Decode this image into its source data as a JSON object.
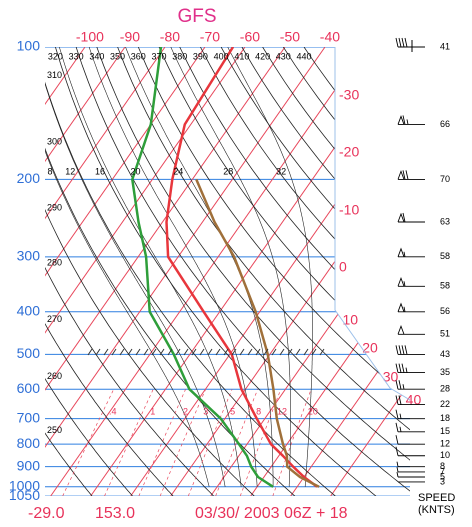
{
  "chart_data": {
    "type": "skewt",
    "title": "GFS",
    "yscale": "log",
    "ylim": [
      1050,
      100
    ],
    "yticks": [
      100,
      200,
      300,
      400,
      500,
      600,
      700,
      800,
      900,
      1000,
      1050
    ],
    "xlim": [
      -110,
      -37.5
    ],
    "xticks": [
      -100,
      -90,
      -80,
      -70,
      -60,
      -50,
      -40,
      -30,
      -20,
      -10,
      0,
      10,
      20,
      30,
      40
    ],
    "theta_ticks": [
      250,
      260,
      270,
      280,
      290,
      300,
      310,
      320,
      330,
      340,
      350,
      360,
      370,
      380,
      390,
      400,
      410,
      420,
      430,
      440
    ],
    "moist_adiabat_ticks": [
      8,
      12,
      16,
      20,
      24,
      28,
      32
    ],
    "mixing_ratio_ticks": [
      {
        "value": 0.4,
        "label": ".4"
      },
      1,
      2,
      3,
      5,
      8,
      12,
      20
    ],
    "grid_colors": {
      "isotherm": "#e8485c",
      "isobar": "#2f7fe0",
      "adiabat": "#222222",
      "mixing_ratio": "#e8485c"
    },
    "pressure_levels": [
      1000,
      950,
      900,
      850,
      800,
      700,
      600,
      500,
      400,
      300,
      250,
      200,
      150,
      100
    ],
    "series": [
      {
        "name": "Temperature",
        "color": "#e8363c",
        "values": [
          35,
          30,
          25.5,
          21,
          16,
          8,
          -1,
          -9.5,
          -24,
          -42.5,
          -49,
          -55,
          -61.5,
          -63
        ]
      },
      {
        "name": "Dewpoint",
        "color": "#2e9e3a",
        "values": [
          24,
          18.5,
          15,
          12,
          8,
          -1,
          -14,
          -24,
          -37.5,
          -48,
          -56,
          -65,
          -70,
          -81
        ]
      },
      {
        "name": "Parcel",
        "color": "#a0703a",
        "values": [
          35.5,
          29,
          24,
          22,
          19,
          13,
          7,
          -0.5,
          -11,
          -26,
          -37,
          -49,
          null,
          null
        ]
      }
    ],
    "wind_pressures": [
      100,
      150,
      200,
      250,
      300,
      350,
      400,
      450,
      500,
      550,
      600,
      650,
      700,
      750,
      800,
      850,
      900,
      925,
      950,
      975
    ],
    "wind_speeds": [
      41,
      66,
      70,
      63,
      58,
      58,
      56,
      51,
      43,
      35,
      28,
      22,
      18,
      15,
      12,
      10,
      8,
      7,
      5,
      3
    ],
    "wind_axis_label": [
      "SPEED",
      "(KNTS)"
    ],
    "annotations": [
      "-29.0",
      "153.0",
      "03/30/ 2003 06Z + 18"
    ]
  }
}
